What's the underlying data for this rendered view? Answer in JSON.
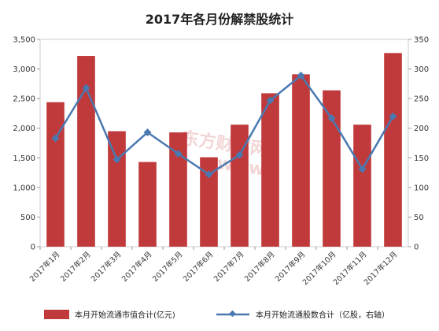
{
  "chart_data": {
    "type": "bar",
    "title": "2017年各月份解禁股统计",
    "categories": [
      "2017年1月",
      "2017年2月",
      "2017年3月",
      "2017年4月",
      "2017年5月",
      "2017年6月",
      "2017年7月",
      "2017年8月",
      "2017年9月",
      "2017年10月",
      "2017年11月",
      "2017年12月"
    ],
    "series": [
      {
        "name": "本月开始流通市值合计(亿元)",
        "type": "bar",
        "axis": "left",
        "color": "#c0393b",
        "values": [
          2440,
          3220,
          1950,
          1430,
          1930,
          1510,
          2060,
          2590,
          2910,
          2640,
          2060,
          3270
        ]
      },
      {
        "name": "本月开始流通股数合计（亿股，右轴）",
        "type": "line",
        "axis": "right",
        "color": "#4a79b0",
        "values": [
          183,
          268,
          147,
          193,
          157,
          122,
          155,
          247,
          289,
          217,
          131,
          220
        ]
      }
    ],
    "y_left": {
      "min": 0,
      "max": 3500,
      "step": 500,
      "tick_labels": [
        "0",
        "500",
        "1,000",
        "1,500",
        "2,000",
        "2,500",
        "3,000",
        "3,500"
      ]
    },
    "y_right": {
      "min": 0,
      "max": 350,
      "step": 50,
      "tick_labels": [
        "0",
        "50",
        "100",
        "150",
        "200",
        "250",
        "300",
        "350"
      ]
    },
    "grid": false,
    "legend_position": "bottom"
  }
}
